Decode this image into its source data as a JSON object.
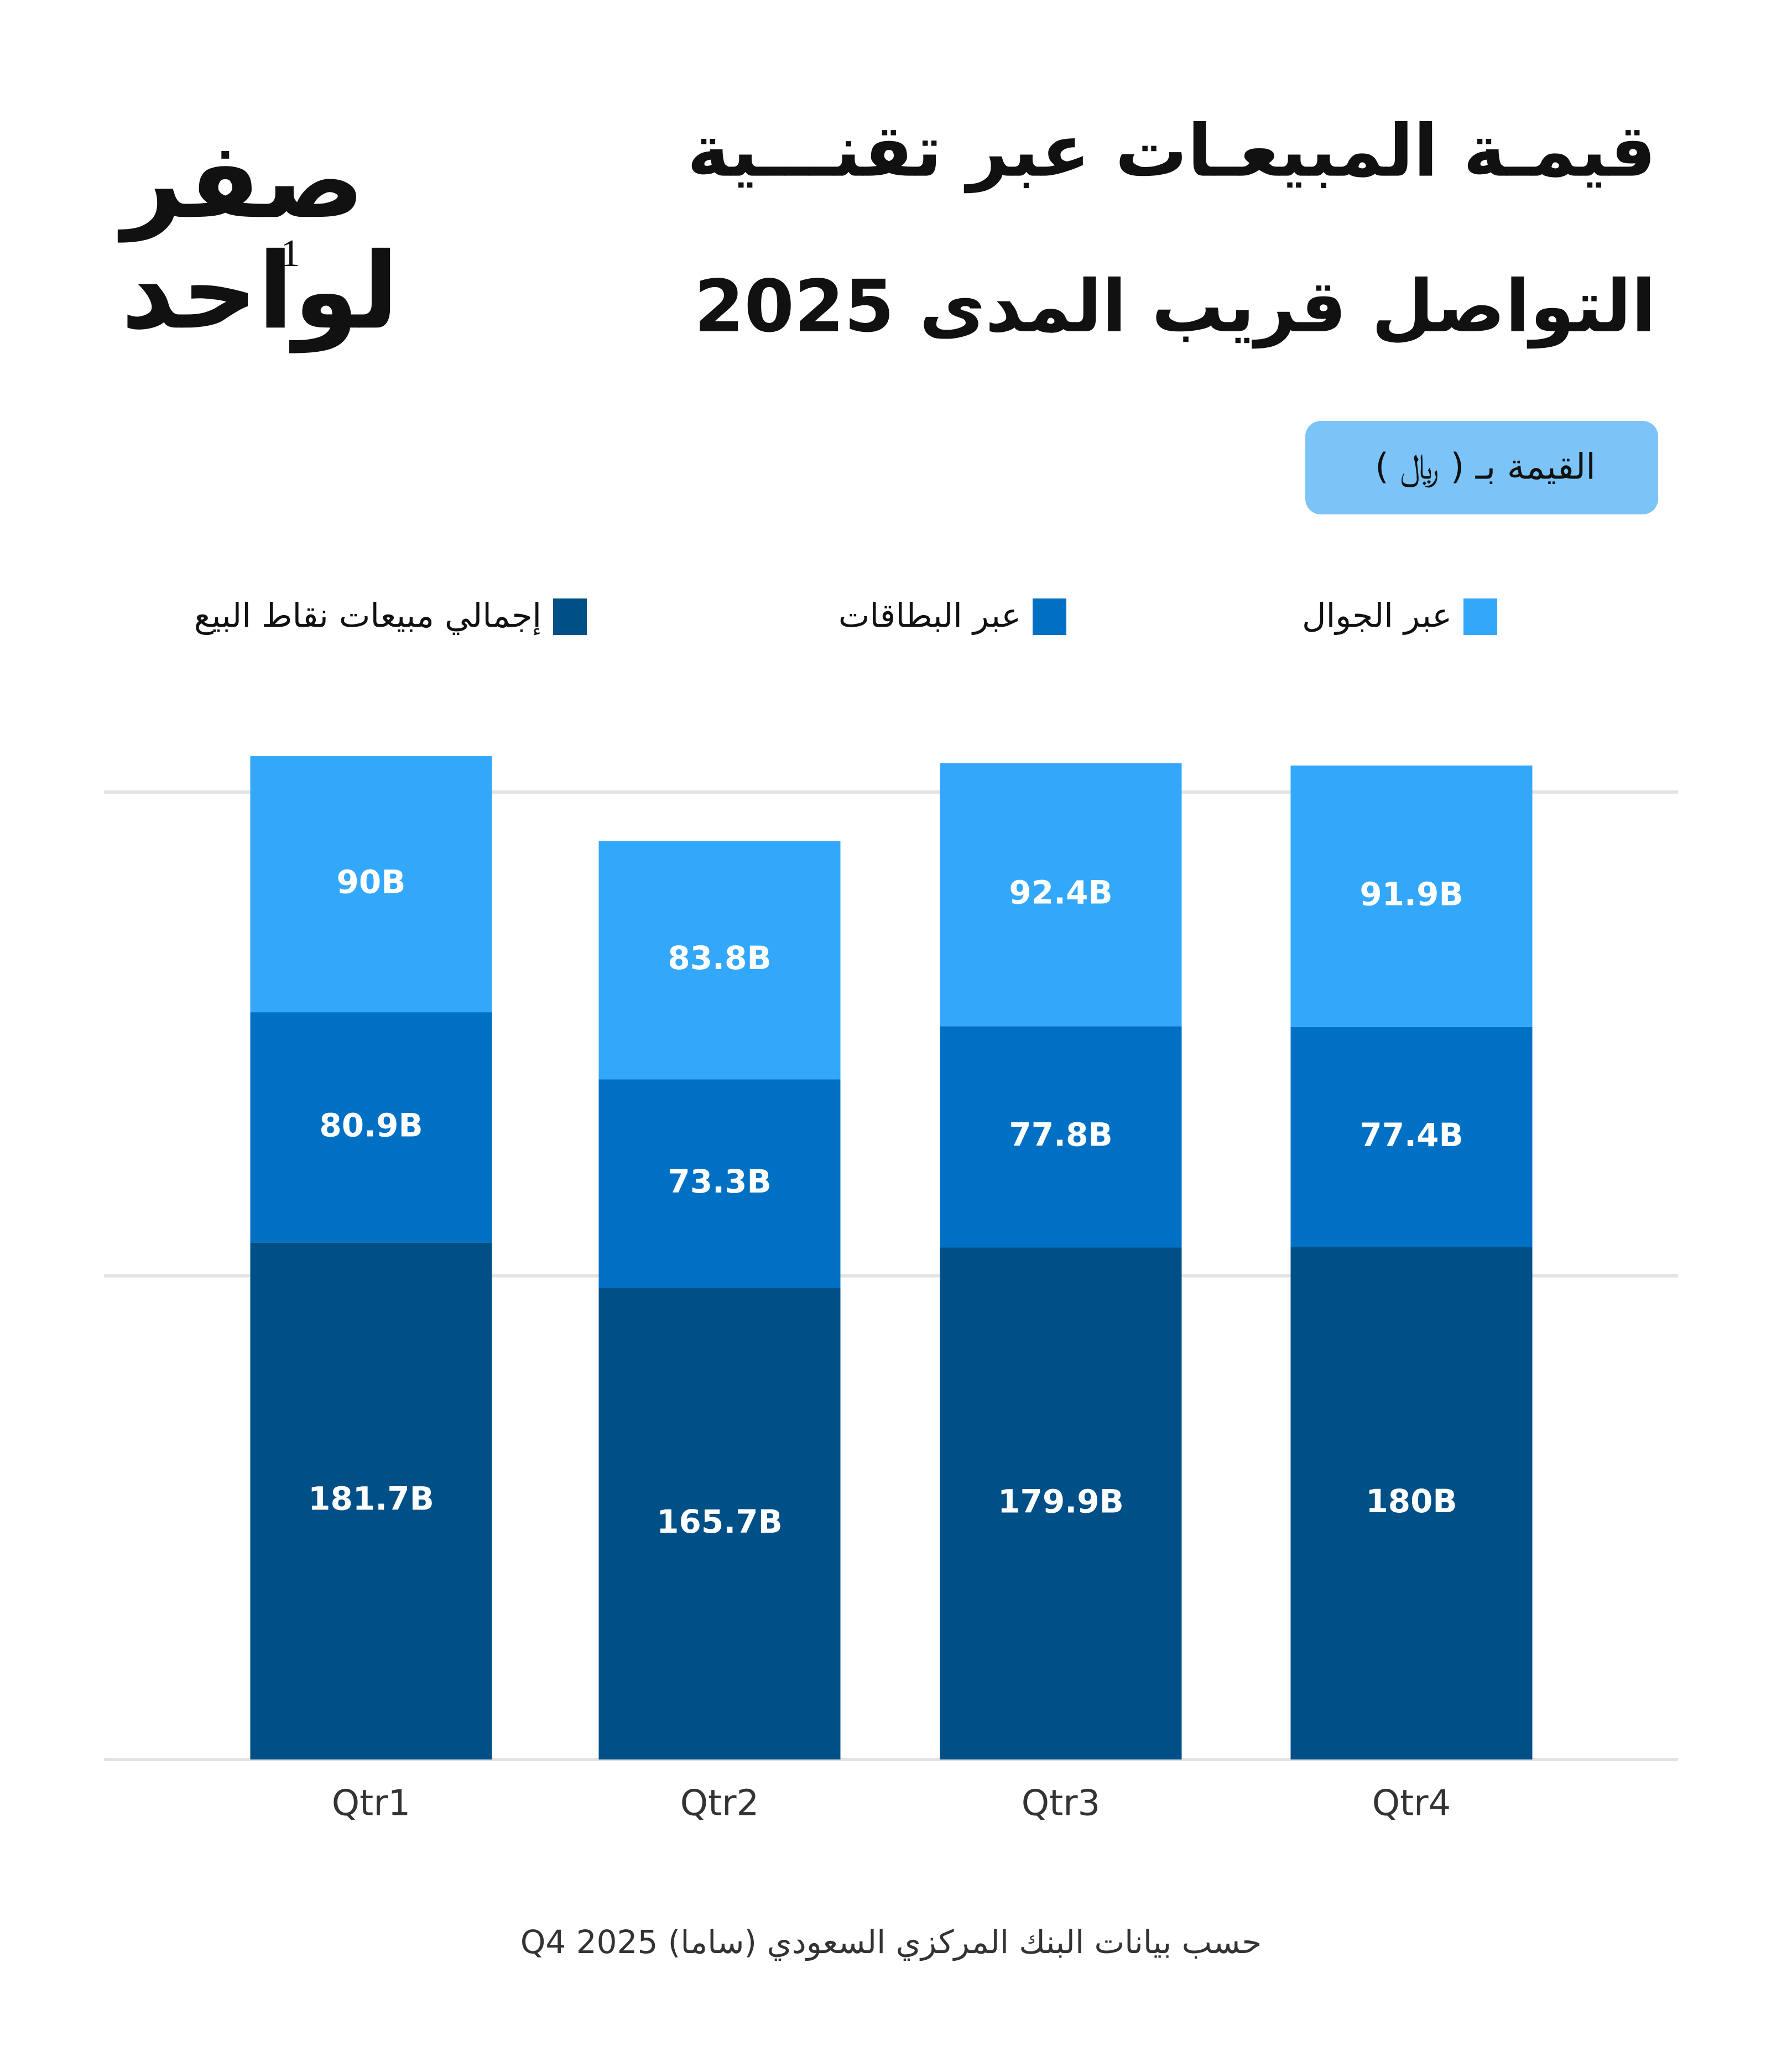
{
  "logo": {
    "line1": "صفر",
    "line2": "لواحد",
    "mark": "1"
  },
  "chart_data": {
    "type": "stacked-bar",
    "title": [
      "قيمـة المبيعـات عبر تقنـــية",
      "التواصل قريب المدى 2025"
    ],
    "unit_label": "القيمة بـ ( ﷼ )",
    "categories": [
      "Qtr1",
      "Qtr2",
      "Qtr3",
      "Qtr4"
    ],
    "series": [
      {
        "name": "إجمالي مبيعات نقاط البيع",
        "color": "#004f87",
        "values": [
          181.7,
          165.7,
          179.9,
          180
        ],
        "value_labels": [
          "181.7B",
          "165.7B",
          "179.9B",
          "180B"
        ]
      },
      {
        "name": "عبر البطاقات",
        "color": "#0070c4",
        "values": [
          80.9,
          73.3,
          77.8,
          77.4
        ],
        "value_labels": [
          "80.9B",
          "73.3B",
          "77.8B",
          "77.4B"
        ]
      },
      {
        "name": "عبر الجوال",
        "color": "#33a8fb",
        "values": [
          90,
          83.8,
          92.4,
          91.9
        ],
        "value_labels": [
          "90B",
          "83.8B",
          "92.4B",
          "91.9B"
        ]
      }
    ],
    "ylim": [
      0,
      360
    ],
    "yticks": [
      0,
      170,
      340
    ],
    "grid": true,
    "source": "حسب بيانات البنك المركزي السعودي (ساما) Q4 2025"
  }
}
